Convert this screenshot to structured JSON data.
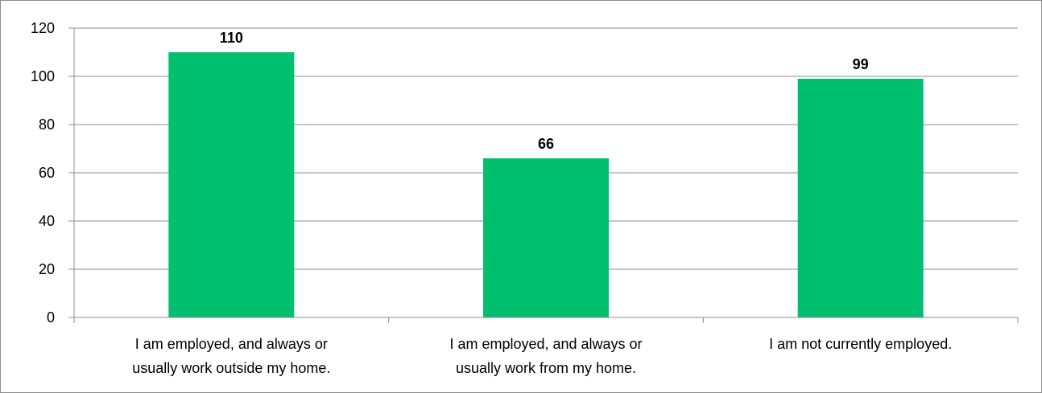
{
  "chart_data": {
    "type": "bar",
    "categories": [
      [
        "I am employed, and always or",
        "usually work outside my home."
      ],
      [
        "I am employed, and always or",
        "usually work from my home."
      ],
      [
        "I am not currently employed."
      ]
    ],
    "values": [
      110,
      66,
      99
    ],
    "data_labels": [
      "110",
      "66",
      "99"
    ],
    "title": "",
    "xlabel": "",
    "ylabel": "",
    "ylim": [
      0,
      120
    ],
    "yticks": [
      "0",
      "20",
      "40",
      "60",
      "80",
      "100",
      "120"
    ],
    "grid": true,
    "legend": "none",
    "colors": {
      "bar": "#00BF6F",
      "grid": "#8c8c8c",
      "axis": "#8c8c8c"
    }
  }
}
